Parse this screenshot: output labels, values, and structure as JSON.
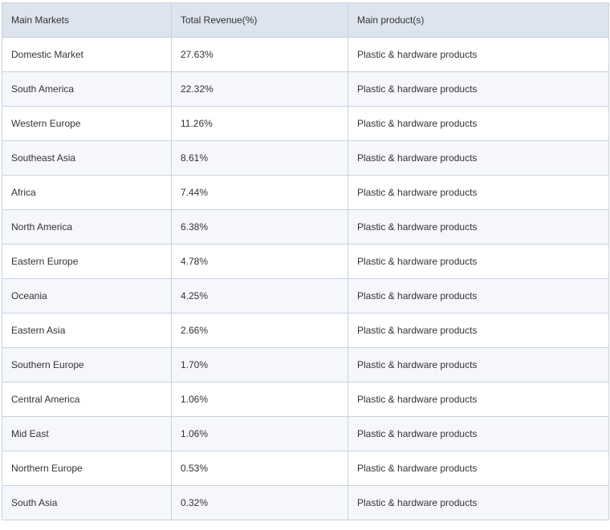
{
  "table": {
    "headers": [
      "Main Markets",
      "Total Revenue(%)",
      "Main product(s)"
    ],
    "rows": [
      [
        "Domestic Market",
        "27.63%",
        "Plastic & hardware products"
      ],
      [
        "South America",
        "22.32%",
        "Plastic & hardware products"
      ],
      [
        "Western Europe",
        "11.26%",
        "Plastic & hardware products"
      ],
      [
        "Southeast Asia",
        "8.61%",
        "Plastic & hardware products"
      ],
      [
        "Africa",
        "7.44%",
        "Plastic & hardware products"
      ],
      [
        "North America",
        "6.38%",
        "Plastic & hardware products"
      ],
      [
        "Eastern Europe",
        "4.78%",
        "Plastic & hardware products"
      ],
      [
        "Oceania",
        "4.25%",
        "Plastic & hardware products"
      ],
      [
        "Eastern Asia",
        "2.66%",
        "Plastic & hardware products"
      ],
      [
        "Southern Europe",
        "1.70%",
        "Plastic & hardware products"
      ],
      [
        "Central America",
        "1.06%",
        "Plastic & hardware products"
      ],
      [
        "Mid East",
        "1.06%",
        "Plastic & hardware products"
      ],
      [
        "Northern Europe",
        "0.53%",
        "Plastic & hardware products"
      ],
      [
        "South Asia",
        "0.32%",
        "Plastic & hardware products"
      ]
    ]
  },
  "colors": {
    "header_bg": "#dde4ee",
    "border": "#c7d2df",
    "alt_row_bg": "#f5f7fa",
    "text": "#333333"
  }
}
